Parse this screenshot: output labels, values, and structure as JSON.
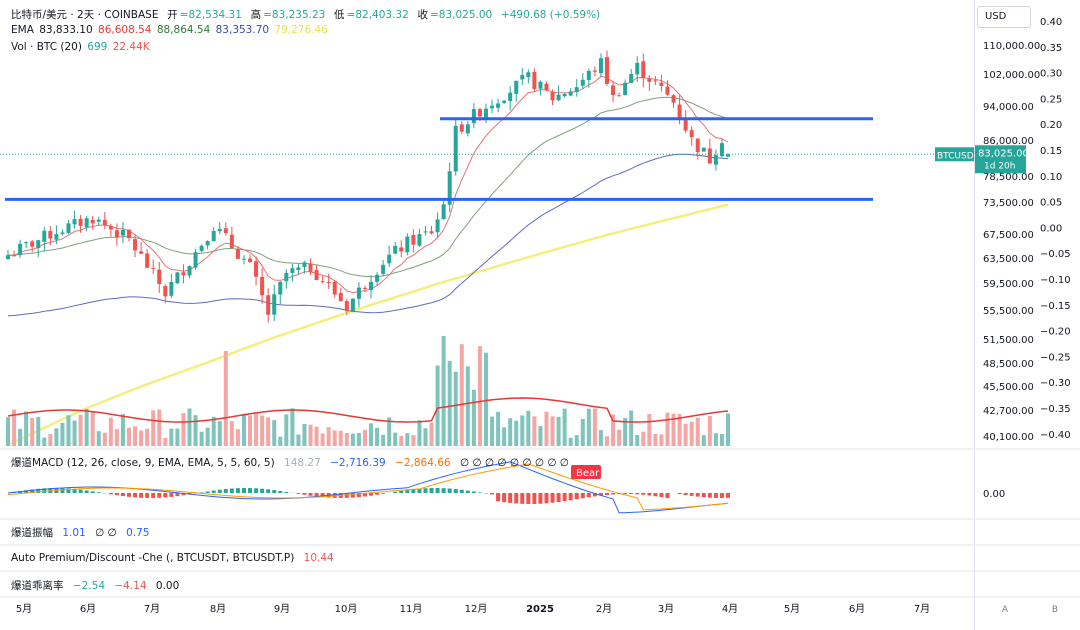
{
  "header": {
    "symbol": "比特币/美元 · 2天 · COINBASE",
    "open_label": "开",
    "open": "=82,534.31",
    "high_label": "高",
    "high": "=83,235.23",
    "low_label": "低",
    "low": "=82,403.32",
    "close_label": "收",
    "close": "=83,025.00",
    "change": "+490.68 (+0.59%)"
  },
  "ema_legend": {
    "label": "EMA",
    "v1": "83,833.10",
    "v2": "86,608.54",
    "v3": "88,864.54",
    "v4": "83,353.70",
    "v5": "79,276.46"
  },
  "vol_legend": {
    "label": "Vol · BTC (20)",
    "v1": "699",
    "v2": "22.44K"
  },
  "macd_legend": {
    "name": "爆道MACD (12, 26, close, 9, EMA, EMA, 5, 5, 60, 5)",
    "v1": "148.27",
    "v2": "−2,716.39",
    "v3": "−2,864.66",
    "extra": "∅ ∅ ∅ ∅ ∅ ∅ ∅ ∅ ∅"
  },
  "osc_legend": {
    "name": "爆道振幅",
    "v1": "1.01",
    "v2": "∅ ∅",
    "v3": "0.75"
  },
  "prem_legend": {
    "name": "Auto Premium/Discount -Che (, BTCUSDT, BTCUSDT.P)",
    "v1": "10.44"
  },
  "rate_legend": {
    "name": "爆道乖离率",
    "v1": "−2.54",
    "v2": "−4.14",
    "v3": "0.00"
  },
  "currency_button": "USD",
  "price_label": {
    "symbol": "BTCUSD",
    "price": "83,025.00",
    "countdown": "1d 20h"
  },
  "colors": {
    "up": "#26a69a",
    "down": "#ef5350",
    "ema_red": "#e57373",
    "ema_green": "#80a080",
    "ema_blue": "#5c6bc0",
    "ema_yellow": "#f2ef7e",
    "level_line": "#2962ff",
    "bear_tag": "#f23645"
  },
  "bear_label": "Bear",
  "macd_zero": "0.00",
  "corner_a": "A",
  "corner_b": "B",
  "chart_data": {
    "type": "candlestick",
    "price_ticks": [
      "110,000.00",
      "102,000.00",
      "94,000.00",
      "86,000.00",
      "78,500.00",
      "73,500.00",
      "67,500.00",
      "63,500.00",
      "59,500.00",
      "55,500.00",
      "51,500.00",
      "48,500.00",
      "45,500.00",
      "42,700.00",
      "40,100.00"
    ],
    "osc_ticks": [
      "0.40",
      "0.35",
      "0.30",
      "0.25",
      "0.20",
      "0.15",
      "0.10",
      "0.05",
      "0.00",
      "−0.05",
      "−0.10",
      "−0.15",
      "−0.20",
      "−0.25",
      "−0.30",
      "−0.35",
      "−0.40"
    ],
    "time_ticks": [
      "5月",
      "6月",
      "7月",
      "8月",
      "9月",
      "10月",
      "11月",
      "12月",
      "2025",
      "2月",
      "3月",
      "4月",
      "5月",
      "6月",
      "7月"
    ],
    "support_levels": [
      91000,
      74000
    ],
    "last_price": 83025
  }
}
